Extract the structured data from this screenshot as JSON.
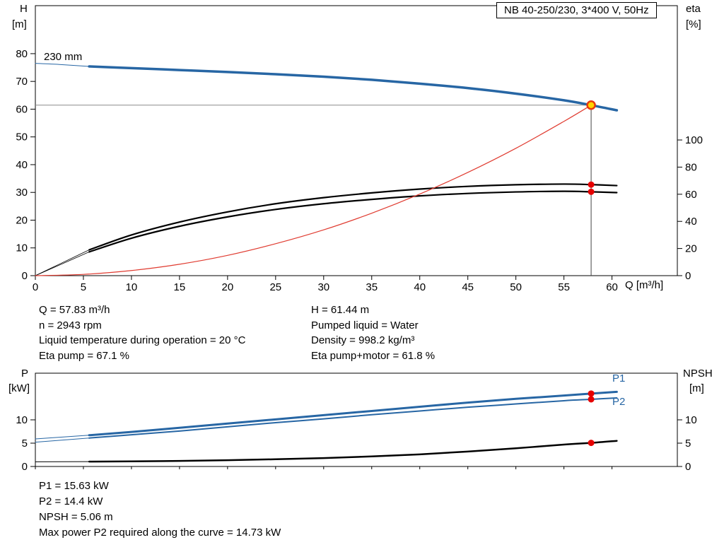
{
  "colors": {
    "pump": "#2766a4",
    "eta": "#000000",
    "system": "#e03c31",
    "dot": "#e60000",
    "duty_fill": "#ffd400",
    "duty_ring": "#e8390e",
    "guide_h": "#8a8a8a",
    "guide_v": "#444444",
    "axis": "#000000"
  },
  "info": {
    "left": [
      "Q = 57.83 m³/h",
      "n = 2943 rpm",
      "Liquid temperature during operation = 20 °C",
      "Eta pump = 67.1 %"
    ],
    "right": [
      "H = 61.44 m",
      "Pumped liquid = Water",
      "Density = 998.2 kg/m³",
      "Eta pump+motor = 61.8 %"
    ]
  },
  "footer": [
    "P1 = 15.63 kW",
    "P2 = 14.4 kW",
    "NPSH = 5.06 m",
    "Max power P2 required along the curve = 14.73 kW"
  ],
  "chart_data": [
    {
      "type": "line",
      "title": "NB 40-250/230, 3*400 V, 50Hz",
      "annotations": [
        {
          "text": "230 mm"
        }
      ],
      "x": {
        "label": "Q [m³/h]",
        "lim": [
          0,
          66.8
        ],
        "ticks": [
          0,
          5,
          10,
          15,
          20,
          25,
          30,
          35,
          40,
          45,
          50,
          55,
          60
        ]
      },
      "y_left": {
        "label": [
          "H",
          "[m]"
        ],
        "lim": [
          0,
          97.3
        ],
        "ticks": [
          0,
          10,
          20,
          30,
          40,
          50,
          60,
          70,
          80
        ]
      },
      "y_right": {
        "label": [
          "eta",
          "[%]"
        ],
        "lim": [
          0,
          199
        ],
        "ticks": [
          0,
          20,
          40,
          60,
          80,
          100
        ]
      },
      "guides": [
        {
          "name": "duty-horizontal-line",
          "axis": "left",
          "color": "guide_h",
          "width": 1,
          "points": [
            [
              0,
              61.44
            ],
            [
              57.83,
              61.44
            ]
          ]
        },
        {
          "name": "duty-vertical-line",
          "axis": "left",
          "color": "guide_v",
          "width": 1,
          "points": [
            [
              57.83,
              0
            ],
            [
              57.83,
              61.44
            ]
          ]
        }
      ],
      "series": [
        {
          "name": "pump-curve-lead",
          "axis": "left",
          "color": "pump",
          "width": 1,
          "points": [
            [
              0,
              76.5
            ],
            [
              2.5,
              76.1
            ],
            [
              5.6,
              75.4
            ]
          ]
        },
        {
          "name": "pump-curve",
          "axis": "left",
          "color": "pump",
          "width": 3.5,
          "points": [
            [
              5.6,
              75.4
            ],
            [
              10,
              74.8
            ],
            [
              15,
              74.1
            ],
            [
              20,
              73.4
            ],
            [
              25,
              72.6
            ],
            [
              30,
              71.7
            ],
            [
              35,
              70.6
            ],
            [
              40,
              69.2
            ],
            [
              45,
              67.6
            ],
            [
              50,
              65.6
            ],
            [
              55,
              63.2
            ],
            [
              57.83,
              61.44
            ],
            [
              60.5,
              59.6
            ]
          ]
        },
        {
          "name": "eta-pump-curve-lead",
          "axis": "right",
          "color": "eta",
          "width": 0.8,
          "points": [
            [
              0,
              0
            ],
            [
              2.5,
              8.5
            ],
            [
              5.6,
              19
            ]
          ]
        },
        {
          "name": "eta-pump-curve",
          "axis": "right",
          "color": "eta",
          "width": 2.2,
          "points": [
            [
              5.6,
              19
            ],
            [
              10,
              30
            ],
            [
              15,
              39.5
            ],
            [
              20,
              47
            ],
            [
              25,
              53
            ],
            [
              30,
              57.5
            ],
            [
              35,
              61
            ],
            [
              40,
              63.8
            ],
            [
              45,
              65.8
            ],
            [
              50,
              67
            ],
            [
              55,
              67.5
            ],
            [
              57.83,
              67.1
            ],
            [
              60.5,
              66.4
            ]
          ]
        },
        {
          "name": "eta-pump-motor-curve-lead",
          "axis": "right",
          "color": "eta",
          "width": 0.8,
          "points": [
            [
              0,
              0
            ],
            [
              2.5,
              7.8
            ],
            [
              5.6,
              17.5
            ]
          ]
        },
        {
          "name": "eta-pump-motor-curve",
          "axis": "right",
          "color": "eta",
          "width": 2.2,
          "points": [
            [
              5.6,
              17.5
            ],
            [
              10,
              27.6
            ],
            [
              15,
              36.4
            ],
            [
              20,
              43.3
            ],
            [
              25,
              48.8
            ],
            [
              30,
              53
            ],
            [
              35,
              56.2
            ],
            [
              40,
              58.8
            ],
            [
              45,
              60.6
            ],
            [
              50,
              61.7
            ],
            [
              55,
              62.2
            ],
            [
              57.83,
              61.8
            ],
            [
              60.5,
              61.2
            ]
          ]
        },
        {
          "name": "system-curve",
          "axis": "left",
          "color": "system",
          "width": 1.2,
          "points": [
            [
              0,
              0
            ],
            [
              5,
              0.46
            ],
            [
              10,
              1.84
            ],
            [
              15,
              4.1
            ],
            [
              20,
              7.3
            ],
            [
              25,
              11.5
            ],
            [
              30,
              16.5
            ],
            [
              35,
              22.5
            ],
            [
              40,
              29.4
            ],
            [
              45,
              37.2
            ],
            [
              50,
              45.9
            ],
            [
              55,
              55.6
            ],
            [
              57.83,
              61.44
            ]
          ]
        }
      ],
      "markers": [
        {
          "name": "duty-point",
          "axis": "left",
          "x": 57.83,
          "y": 61.44,
          "r": 5.5,
          "fill": "duty_fill",
          "stroke": "duty_ring",
          "sw": 2.5
        },
        {
          "name": "eta-pump-dot",
          "axis": "right",
          "x": 57.83,
          "y": 67.1,
          "r": 4.5,
          "fill": "dot"
        },
        {
          "name": "eta-pump-motor-dot",
          "axis": "right",
          "x": 57.83,
          "y": 61.8,
          "r": 4.5,
          "fill": "dot"
        }
      ]
    },
    {
      "type": "line",
      "title": "",
      "x": {
        "label": "",
        "lim": [
          0,
          66.8
        ],
        "ticks": [
          0,
          5,
          10,
          15,
          20,
          25,
          30,
          35,
          40,
          45,
          50,
          55,
          60
        ],
        "show_labels": false
      },
      "y_left": {
        "label": [
          "P",
          "[kW]"
        ],
        "lim": [
          0,
          20
        ],
        "ticks": [
          0,
          5,
          10
        ]
      },
      "y_right": {
        "label": [
          "NPSH",
          "[m]"
        ],
        "lim": [
          0,
          20
        ],
        "ticks": [
          0,
          5,
          10
        ]
      },
      "curve_labels": [
        {
          "text": "P1"
        },
        {
          "text": "P2"
        }
      ],
      "series": [
        {
          "name": "p1-curve-lead",
          "axis": "left",
          "color": "pump",
          "width": 1,
          "points": [
            [
              0,
              5.9
            ],
            [
              5.6,
              6.7
            ]
          ]
        },
        {
          "name": "p1-curve",
          "axis": "left",
          "color": "pump",
          "width": 3,
          "points": [
            [
              5.6,
              6.7
            ],
            [
              10,
              7.4
            ],
            [
              15,
              8.3
            ],
            [
              20,
              9.2
            ],
            [
              25,
              10.1
            ],
            [
              30,
              11.0
            ],
            [
              35,
              11.9
            ],
            [
              40,
              12.8
            ],
            [
              45,
              13.7
            ],
            [
              50,
              14.5
            ],
            [
              55,
              15.2
            ],
            [
              57.83,
              15.63
            ],
            [
              60.5,
              16.0
            ]
          ]
        },
        {
          "name": "p2-curve-lead",
          "axis": "left",
          "color": "pump",
          "width": 1,
          "points": [
            [
              0,
              5.2
            ],
            [
              5.6,
              6.1
            ]
          ]
        },
        {
          "name": "p2-curve",
          "axis": "left",
          "color": "pump",
          "width": 2,
          "points": [
            [
              5.6,
              6.1
            ],
            [
              10,
              6.8
            ],
            [
              15,
              7.6
            ],
            [
              20,
              8.5
            ],
            [
              25,
              9.4
            ],
            [
              30,
              10.2
            ],
            [
              35,
              11.1
            ],
            [
              40,
              11.9
            ],
            [
              45,
              12.7
            ],
            [
              50,
              13.4
            ],
            [
              55,
              14.1
            ],
            [
              57.83,
              14.4
            ],
            [
              60.5,
              14.7
            ]
          ]
        },
        {
          "name": "npsh-curve-lead",
          "axis": "right",
          "color": "eta",
          "width": 1,
          "points": [
            [
              0,
              1.0
            ],
            [
              5.6,
              1.05
            ]
          ]
        },
        {
          "name": "npsh-curve",
          "axis": "right",
          "color": "eta",
          "width": 2.5,
          "points": [
            [
              5.6,
              1.05
            ],
            [
              10,
              1.1
            ],
            [
              15,
              1.2
            ],
            [
              20,
              1.35
            ],
            [
              25,
              1.55
            ],
            [
              30,
              1.8
            ],
            [
              35,
              2.15
            ],
            [
              40,
              2.6
            ],
            [
              45,
              3.2
            ],
            [
              50,
              3.9
            ],
            [
              55,
              4.7
            ],
            [
              57.83,
              5.06
            ],
            [
              60.5,
              5.5
            ]
          ]
        }
      ],
      "markers": [
        {
          "name": "p1-dot",
          "axis": "left",
          "x": 57.83,
          "y": 15.63,
          "r": 4.5,
          "fill": "dot"
        },
        {
          "name": "p2-dot",
          "axis": "left",
          "x": 57.83,
          "y": 14.4,
          "r": 4.5,
          "fill": "dot"
        },
        {
          "name": "npsh-dot",
          "axis": "right",
          "x": 57.83,
          "y": 5.06,
          "r": 4.5,
          "fill": "dot"
        }
      ]
    }
  ]
}
